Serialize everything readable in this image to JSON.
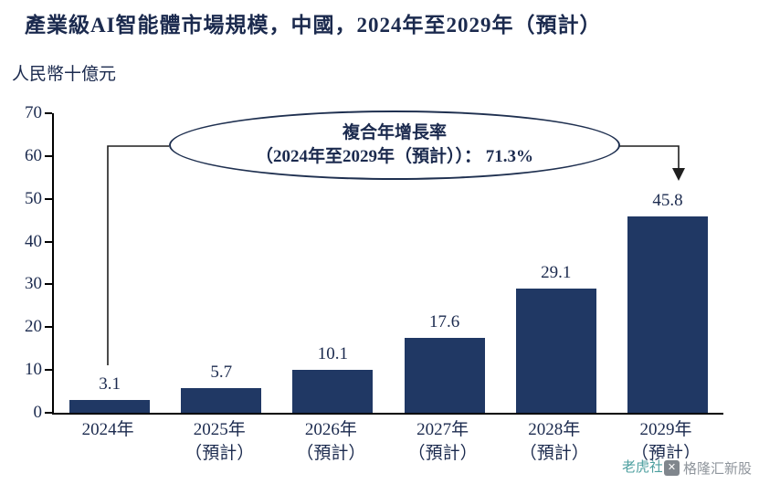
{
  "title": "產業級AI智能體市場規模，中國，2024年至2029年（預計）",
  "unit_label": "人民幣十億元",
  "annotation": {
    "line1": "複合年增長率",
    "line2": "（2024年至2029年（預計））： 71.3%"
  },
  "watermark": {
    "primary": "格隆汇新股",
    "secondary": "老虎社区",
    "logo_glyph": "✕"
  },
  "chart_data": {
    "type": "bar",
    "title": "產業級AI智能體市場規模，中國，2024年至2029年（預計）",
    "ylabel": "人民幣十億元",
    "categories": [
      {
        "line1": "2024年",
        "line2": ""
      },
      {
        "line1": "2025年",
        "line2": "（預計）"
      },
      {
        "line1": "2026年",
        "line2": "（預計）"
      },
      {
        "line1": "2027年",
        "line2": "（預計）"
      },
      {
        "line1": "2028年",
        "line2": "（預計）"
      },
      {
        "line1": "2029年",
        "line2": "（預計）"
      }
    ],
    "values": [
      3.1,
      5.7,
      10.1,
      17.6,
      29.1,
      45.8
    ],
    "ylim": [
      0,
      70
    ],
    "yticks": [
      0,
      10,
      20,
      30,
      40,
      50,
      60,
      70
    ],
    "bar_color": "#203864",
    "grid": false,
    "legend": "none",
    "annotation_cagr": "71.3%"
  }
}
